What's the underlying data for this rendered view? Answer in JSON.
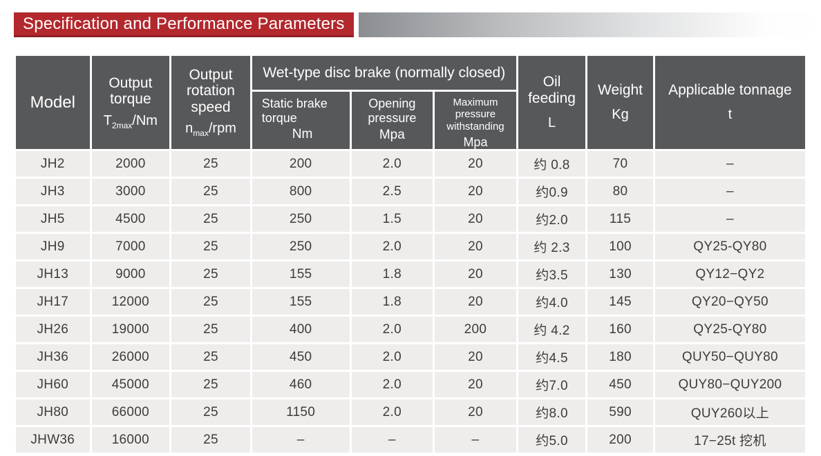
{
  "page": {
    "title": "Specification and Performance Parameters"
  },
  "colors": {
    "banner_red": "#b2282d",
    "banner_red_dark": "#8e1f24",
    "header_gray": "#57585a",
    "row_bg": "#efedec",
    "body_text": "#3e3c3a",
    "bar_gradient_from": "#8b8e91",
    "bar_gradient_to": "#ffffff"
  },
  "table": {
    "headers": {
      "model": "Model",
      "output_torque": {
        "line1": "Output",
        "line2": "torque",
        "sym_main": "T",
        "sym_sub": "2max",
        "sym_rest": "/Nm"
      },
      "output_speed": {
        "line1": "Output",
        "line2": "rotation",
        "line3": "speed",
        "sym_main": "n",
        "sym_sub": "max",
        "sym_rest": "/rpm"
      },
      "wet_group": "Wet-type disc brake (normally closed)",
      "static_brake": {
        "line1": "Static brake",
        "line2": "torque",
        "unit": "Nm"
      },
      "opening": {
        "line1": "Opening",
        "line2": "pressure",
        "unit": "Mpa"
      },
      "max_pressure": {
        "line1": "Maximum pressure",
        "line2": "withstanding",
        "unit": "Mpa"
      },
      "oil": {
        "line1": "Oil feeding",
        "unit": "L"
      },
      "weight": {
        "line1": "Weight",
        "unit": "Kg"
      },
      "tonnage": {
        "line1": "Applicable tonnage",
        "unit": "t"
      }
    },
    "column_keys": [
      "model",
      "torque",
      "speed",
      "static_torque",
      "opening",
      "max_pressure",
      "oil",
      "weight",
      "tonnage"
    ],
    "rows": [
      {
        "model": "JH2",
        "torque": "2000",
        "speed": "25",
        "static_torque": "200",
        "opening": "2.0",
        "max_pressure": "20",
        "oil": "约 0.8",
        "weight": "70",
        "tonnage": "–"
      },
      {
        "model": "JH3",
        "torque": "3000",
        "speed": "25",
        "static_torque": "800",
        "opening": "2.5",
        "max_pressure": "20",
        "oil": "约0.9",
        "weight": "80",
        "tonnage": "–"
      },
      {
        "model": "JH5",
        "torque": "4500",
        "speed": "25",
        "static_torque": "250",
        "opening": "1.5",
        "max_pressure": "20",
        "oil": "约2.0",
        "weight": "115",
        "tonnage": "–"
      },
      {
        "model": "JH9",
        "torque": "7000",
        "speed": "25",
        "static_torque": "250",
        "opening": "2.0",
        "max_pressure": "20",
        "oil": "约 2.3",
        "weight": "100",
        "tonnage": "QY25-QY80"
      },
      {
        "model": "JH13",
        "torque": "9000",
        "speed": "25",
        "static_torque": "155",
        "opening": "1.8",
        "max_pressure": "20",
        "oil": "约3.5",
        "weight": "130",
        "tonnage": "QY12−QY2"
      },
      {
        "model": "JH17",
        "torque": "12000",
        "speed": "25",
        "static_torque": "155",
        "opening": "1.8",
        "max_pressure": "20",
        "oil": "约4.0",
        "weight": "145",
        "tonnage": "QY20−QY50"
      },
      {
        "model": "JH26",
        "torque": "19000",
        "speed": "25",
        "static_torque": "400",
        "opening": "2.0",
        "max_pressure": "200",
        "oil": "约 4.2",
        "weight": "160",
        "tonnage": "QY25-QY80"
      },
      {
        "model": "JH36",
        "torque": "26000",
        "speed": "25",
        "static_torque": "450",
        "opening": "2.0",
        "max_pressure": "20",
        "oil": "约4.5",
        "weight": "180",
        "tonnage": "QUY50−QUY80"
      },
      {
        "model": "JH60",
        "torque": "45000",
        "speed": "25",
        "static_torque": "460",
        "opening": "2.0",
        "max_pressure": "20",
        "oil": "约7.0",
        "weight": "450",
        "tonnage": "QUY80−QUY200"
      },
      {
        "model": "JH80",
        "torque": "66000",
        "speed": "25",
        "static_torque": "1150",
        "opening": "2.0",
        "max_pressure": "20",
        "oil": "约8.0",
        "weight": "590",
        "tonnage": "QUY260以上"
      },
      {
        "model": "JHW36",
        "torque": "16000",
        "speed": "25",
        "static_torque": "–",
        "opening": "–",
        "max_pressure": "–",
        "oil": "约5.0",
        "weight": "200",
        "tonnage": "17−25t 挖机"
      }
    ]
  }
}
